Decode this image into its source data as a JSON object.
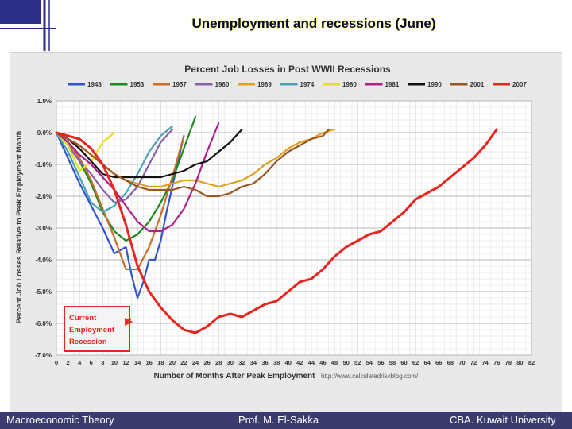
{
  "slide": {
    "title": "Unemployment and recessions (June)"
  },
  "footer": {
    "left": "Macroeconomic Theory",
    "center": "Prof. M. El-Sakka",
    "right": "CBA. Kuwait University"
  },
  "colors": {
    "footer_bg": "#3a3c6e",
    "title_glow": "#ffff66",
    "annotation_red": "#e8251f"
  },
  "chart_data": {
    "type": "line",
    "title": "Percent Job Losses in Post WWII Recessions",
    "xlabel": "Number of Months After Peak Employment",
    "ylabel": "Percent Job Losses Relative to Peak Employment Month",
    "source": "http://www.calculatedriskblog.com/",
    "xlim": [
      0,
      82
    ],
    "ylim": [
      -7.0,
      1.0
    ],
    "x_ticks": [
      0,
      2,
      4,
      6,
      8,
      10,
      12,
      14,
      16,
      18,
      20,
      22,
      24,
      26,
      28,
      30,
      32,
      34,
      36,
      38,
      40,
      42,
      44,
      46,
      48,
      50,
      52,
      54,
      56,
      58,
      60,
      62,
      64,
      66,
      68,
      70,
      72,
      74,
      76,
      78,
      80,
      82
    ],
    "y_ticks": [
      "1.0%",
      "0.0%",
      "-1.0%",
      "-2.0%",
      "-3.0%",
      "-4.0%",
      "-5.0%",
      "-6.0%",
      "-7.0%"
    ],
    "y_tick_values": [
      1,
      0,
      -1,
      -2,
      -3,
      -4,
      -5,
      -6,
      -7
    ],
    "grid": true,
    "legend_position": "top",
    "annotation": {
      "lines": [
        "Current",
        "Employment",
        "Recession"
      ],
      "points_to": {
        "x": 14,
        "y": -6.0
      }
    },
    "series": [
      {
        "name": "1948",
        "color": "#3355cc",
        "x": [
          0,
          2,
          4,
          6,
          8,
          10,
          12,
          13,
          14,
          15,
          16,
          17,
          18,
          19,
          20,
          21,
          22
        ],
        "y": [
          0,
          -0.8,
          -1.6,
          -2.3,
          -3.0,
          -3.8,
          -3.6,
          -4.5,
          -5.2,
          -4.7,
          -4.0,
          -4.0,
          -3.4,
          -2.5,
          -1.7,
          -0.9,
          -0.1
        ]
      },
      {
        "name": "1953",
        "color": "#1e8a1e",
        "x": [
          0,
          2,
          4,
          6,
          8,
          10,
          12,
          14,
          16,
          18,
          20,
          22,
          24
        ],
        "y": [
          0,
          -0.4,
          -0.9,
          -1.6,
          -2.5,
          -3.1,
          -3.4,
          -3.2,
          -2.8,
          -2.2,
          -1.5,
          -0.5,
          0.5
        ]
      },
      {
        "name": "1957",
        "color": "#c8702a",
        "x": [
          0,
          2,
          4,
          6,
          8,
          10,
          12,
          14,
          16,
          18,
          20,
          22
        ],
        "y": [
          0,
          -0.3,
          -0.8,
          -1.5,
          -2.4,
          -3.3,
          -4.3,
          -4.3,
          -3.6,
          -2.6,
          -1.4,
          -0.1
        ]
      },
      {
        "name": "1960",
        "color": "#8a5ea8",
        "x": [
          0,
          2,
          4,
          6,
          8,
          10,
          12,
          14,
          16,
          18,
          20
        ],
        "y": [
          0,
          -0.4,
          -0.9,
          -1.3,
          -1.8,
          -2.2,
          -2.1,
          -1.7,
          -1.0,
          -0.3,
          0.1
        ]
      },
      {
        "name": "1969",
        "color": "#e0a020",
        "x": [
          0,
          2,
          4,
          6,
          8,
          10,
          12,
          14,
          16,
          18,
          20,
          22,
          24,
          26,
          28,
          30,
          32,
          34,
          36,
          38,
          40,
          42,
          44,
          46,
          48
        ],
        "y": [
          0,
          -0.2,
          -0.4,
          -0.7,
          -1.0,
          -1.3,
          -1.5,
          -1.6,
          -1.7,
          -1.7,
          -1.6,
          -1.5,
          -1.5,
          -1.6,
          -1.7,
          -1.6,
          -1.5,
          -1.3,
          -1.0,
          -0.8,
          -0.5,
          -0.3,
          -0.2,
          0.0,
          0.1
        ]
      },
      {
        "name": "1974",
        "color": "#4aa0b4",
        "x": [
          0,
          2,
          4,
          6,
          8,
          10,
          12,
          14,
          16,
          18,
          20
        ],
        "y": [
          0,
          -0.6,
          -1.4,
          -2.2,
          -2.5,
          -2.3,
          -1.9,
          -1.3,
          -0.6,
          -0.1,
          0.2
        ]
      },
      {
        "name": "1980",
        "color": "#e6e020",
        "x": [
          0,
          2,
          4,
          6,
          8,
          10
        ],
        "y": [
          0,
          -0.4,
          -1.2,
          -0.9,
          -0.3,
          0.0
        ]
      },
      {
        "name": "1981",
        "color": "#b0208a",
        "x": [
          0,
          2,
          4,
          6,
          8,
          10,
          12,
          14,
          16,
          18,
          20,
          22,
          24,
          26,
          28
        ],
        "y": [
          0,
          -0.3,
          -0.7,
          -1.0,
          -1.4,
          -1.8,
          -2.3,
          -2.8,
          -3.1,
          -3.1,
          -2.9,
          -2.4,
          -1.6,
          -0.6,
          0.3
        ]
      },
      {
        "name": "1990",
        "color": "#111111",
        "x": [
          0,
          2,
          4,
          6,
          8,
          10,
          12,
          14,
          16,
          18,
          20,
          22,
          24,
          26,
          28,
          30,
          32
        ],
        "y": [
          0,
          -0.2,
          -0.5,
          -0.9,
          -1.3,
          -1.4,
          -1.4,
          -1.4,
          -1.4,
          -1.4,
          -1.3,
          -1.2,
          -1.0,
          -0.9,
          -0.6,
          -0.3,
          0.1
        ]
      },
      {
        "name": "2001",
        "color": "#9a5520",
        "x": [
          0,
          2,
          4,
          6,
          8,
          10,
          12,
          14,
          16,
          18,
          20,
          22,
          24,
          26,
          28,
          30,
          32,
          34,
          36,
          38,
          40,
          42,
          44,
          46,
          47
        ],
        "y": [
          0,
          -0.2,
          -0.4,
          -0.7,
          -1.0,
          -1.3,
          -1.5,
          -1.7,
          -1.8,
          -1.8,
          -1.8,
          -1.7,
          -1.8,
          -2.0,
          -2.0,
          -1.9,
          -1.7,
          -1.6,
          -1.3,
          -0.9,
          -0.6,
          -0.4,
          -0.2,
          -0.1,
          0.1
        ]
      },
      {
        "name": "2007",
        "color": "#e8251f",
        "x": [
          0,
          2,
          4,
          6,
          8,
          10,
          12,
          14,
          16,
          18,
          20,
          22,
          24,
          26,
          28,
          30,
          32,
          34,
          36,
          38,
          40,
          42,
          44,
          46,
          48,
          50,
          52,
          54,
          56,
          58,
          60,
          62,
          64,
          66,
          68,
          70,
          72,
          74,
          76
        ],
        "y": [
          0,
          -0.1,
          -0.2,
          -0.5,
          -1.0,
          -1.8,
          -2.9,
          -4.2,
          -5.0,
          -5.5,
          -5.9,
          -6.2,
          -6.3,
          -6.1,
          -5.8,
          -5.7,
          -5.8,
          -5.6,
          -5.4,
          -5.3,
          -5.0,
          -4.7,
          -4.6,
          -4.3,
          -3.9,
          -3.6,
          -3.4,
          -3.2,
          -3.1,
          -2.8,
          -2.5,
          -2.1,
          -1.9,
          -1.7,
          -1.4,
          -1.1,
          -0.8,
          -0.4,
          0.1
        ]
      }
    ]
  }
}
